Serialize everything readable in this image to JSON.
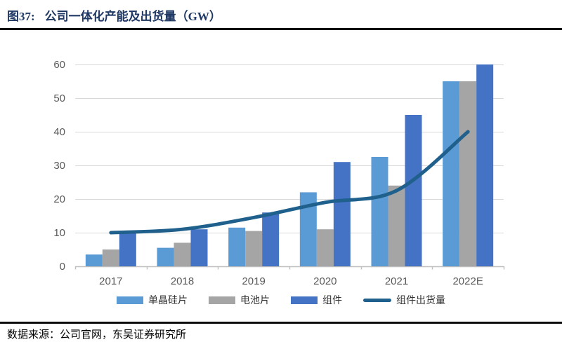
{
  "figure": {
    "label": "图37:",
    "title": "公司一体化产能及出货量（GW）"
  },
  "source": {
    "text": "数据来源：公司官网，东吴证券研究所"
  },
  "chart_data": {
    "type": "bar",
    "subtype": "grouped-bars-with-line",
    "title": "公司一体化产能及出货量（GW）",
    "categories": [
      "2017",
      "2018",
      "2019",
      "2020",
      "2021",
      "2022E"
    ],
    "series": [
      {
        "name": "单晶硅片",
        "type": "bar",
        "color": "#5B9BD5",
        "values": [
          3.5,
          5.5,
          11.5,
          22,
          32.5,
          55
        ]
      },
      {
        "name": "电池片",
        "type": "bar",
        "color": "#A5A5A5",
        "values": [
          5,
          7,
          10.5,
          11,
          24,
          55
        ]
      },
      {
        "name": "组件",
        "type": "bar",
        "color": "#4472C4",
        "values": [
          10.5,
          11,
          16,
          31,
          45,
          60
        ]
      },
      {
        "name": "组件出货量",
        "type": "line",
        "color": "#20608C",
        "values": [
          10,
          11,
          14.5,
          19,
          22.5,
          40
        ]
      }
    ],
    "xlabel": "",
    "ylabel": "",
    "ylim": [
      0,
      60
    ],
    "yticks": [
      0,
      10,
      20,
      30,
      40,
      50,
      60
    ],
    "grid": true,
    "legend_position": "bottom",
    "style": {
      "grid_color": "#D9D9D9",
      "axis_color": "#BFBFBF",
      "tick_label_color": "#595959",
      "title_color": "#1F3864"
    }
  }
}
